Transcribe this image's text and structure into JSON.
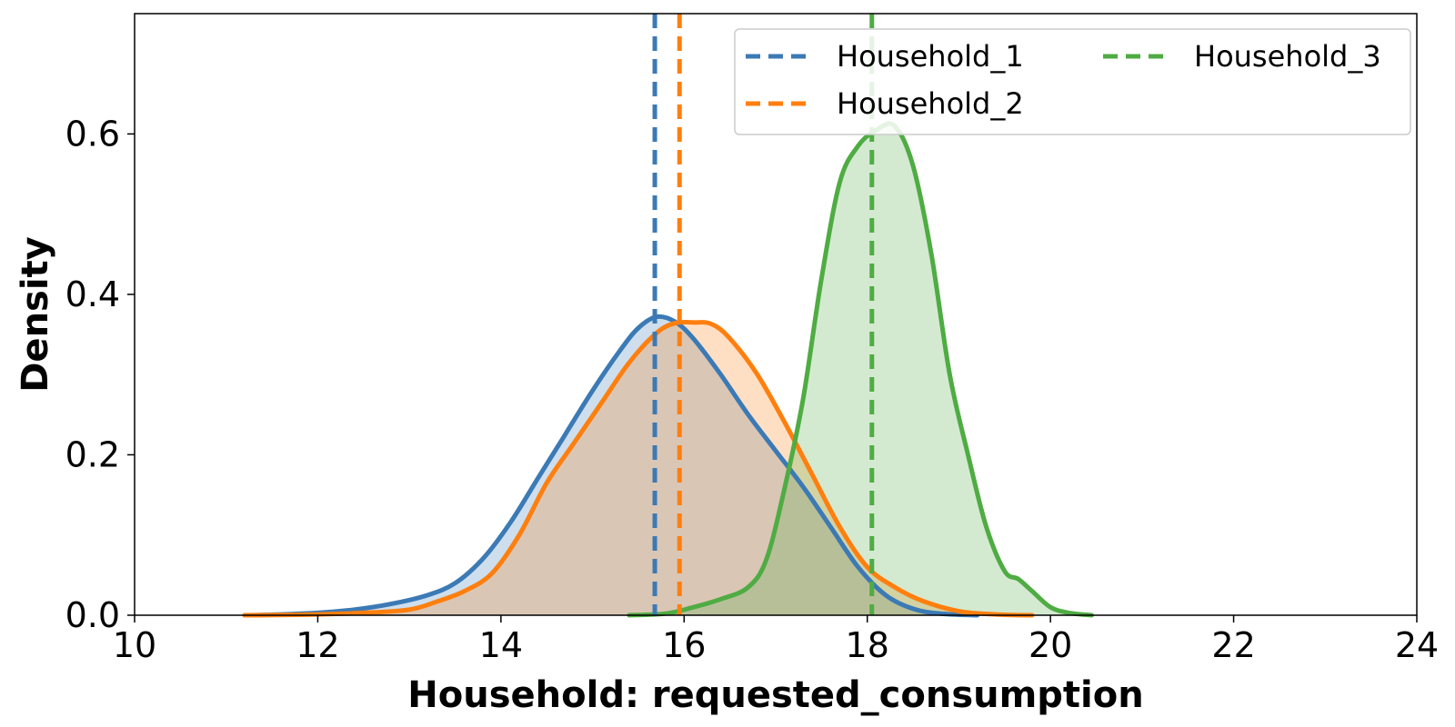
{
  "chart_data": {
    "type": "area",
    "title": "",
    "xlabel": "Household: requested_consumption",
    "ylabel": "Density",
    "xlim": [
      10,
      24
    ],
    "ylim": [
      0,
      0.75
    ],
    "xticks": [
      10,
      12,
      14,
      16,
      18,
      20,
      22,
      24
    ],
    "yticks": [
      0.0,
      0.2,
      0.4,
      0.6
    ],
    "xtick_labels": [
      "10",
      "12",
      "14",
      "16",
      "18",
      "20",
      "22",
      "24"
    ],
    "ytick_labels": [
      "0.0",
      "0.2",
      "0.4",
      "0.6"
    ],
    "grid": false,
    "legend": {
      "position": "top-right",
      "columns": 2
    },
    "series": [
      {
        "name": "Household_1",
        "color": "#3b7ab5",
        "mean": 15.68,
        "points": [
          [
            11.2,
            0.0
          ],
          [
            11.6,
            0.001
          ],
          [
            12.0,
            0.003
          ],
          [
            12.4,
            0.007
          ],
          [
            12.8,
            0.014
          ],
          [
            13.2,
            0.025
          ],
          [
            13.5,
            0.04
          ],
          [
            13.8,
            0.07
          ],
          [
            14.1,
            0.115
          ],
          [
            14.4,
            0.17
          ],
          [
            14.7,
            0.225
          ],
          [
            15.0,
            0.28
          ],
          [
            15.3,
            0.33
          ],
          [
            15.5,
            0.358
          ],
          [
            15.7,
            0.372
          ],
          [
            15.9,
            0.366
          ],
          [
            16.1,
            0.345
          ],
          [
            16.4,
            0.3
          ],
          [
            16.7,
            0.25
          ],
          [
            17.0,
            0.205
          ],
          [
            17.3,
            0.16
          ],
          [
            17.6,
            0.11
          ],
          [
            17.9,
            0.06
          ],
          [
            18.2,
            0.025
          ],
          [
            18.5,
            0.008
          ],
          [
            18.8,
            0.002
          ],
          [
            19.2,
            0.0
          ]
        ]
      },
      {
        "name": "Household_2",
        "color": "#ff7f0e",
        "mean": 15.95,
        "points": [
          [
            11.2,
            0.0
          ],
          [
            12.0,
            0.001
          ],
          [
            12.5,
            0.003
          ],
          [
            13.0,
            0.007
          ],
          [
            13.3,
            0.017
          ],
          [
            13.6,
            0.03
          ],
          [
            13.9,
            0.052
          ],
          [
            14.2,
            0.1
          ],
          [
            14.5,
            0.165
          ],
          [
            14.8,
            0.215
          ],
          [
            15.1,
            0.265
          ],
          [
            15.4,
            0.315
          ],
          [
            15.7,
            0.352
          ],
          [
            15.9,
            0.364
          ],
          [
            16.1,
            0.365
          ],
          [
            16.3,
            0.363
          ],
          [
            16.5,
            0.345
          ],
          [
            16.8,
            0.3
          ],
          [
            17.1,
            0.24
          ],
          [
            17.4,
            0.175
          ],
          [
            17.7,
            0.11
          ],
          [
            18.0,
            0.06
          ],
          [
            18.3,
            0.035
          ],
          [
            18.6,
            0.018
          ],
          [
            19.0,
            0.005
          ],
          [
            19.4,
            0.001
          ],
          [
            19.8,
            0.0
          ]
        ]
      },
      {
        "name": "Household_3",
        "color": "#4fac43",
        "mean": 18.05,
        "points": [
          [
            15.4,
            0.0
          ],
          [
            15.8,
            0.002
          ],
          [
            16.1,
            0.01
          ],
          [
            16.4,
            0.02
          ],
          [
            16.7,
            0.035
          ],
          [
            16.9,
            0.07
          ],
          [
            17.1,
            0.16
          ],
          [
            17.3,
            0.27
          ],
          [
            17.5,
            0.42
          ],
          [
            17.7,
            0.54
          ],
          [
            17.9,
            0.585
          ],
          [
            18.1,
            0.605
          ],
          [
            18.3,
            0.61
          ],
          [
            18.5,
            0.56
          ],
          [
            18.7,
            0.45
          ],
          [
            18.9,
            0.3
          ],
          [
            19.1,
            0.2
          ],
          [
            19.3,
            0.11
          ],
          [
            19.5,
            0.055
          ],
          [
            19.65,
            0.045
          ],
          [
            19.8,
            0.03
          ],
          [
            20.0,
            0.01
          ],
          [
            20.2,
            0.003
          ],
          [
            20.45,
            0.0
          ]
        ]
      }
    ]
  }
}
